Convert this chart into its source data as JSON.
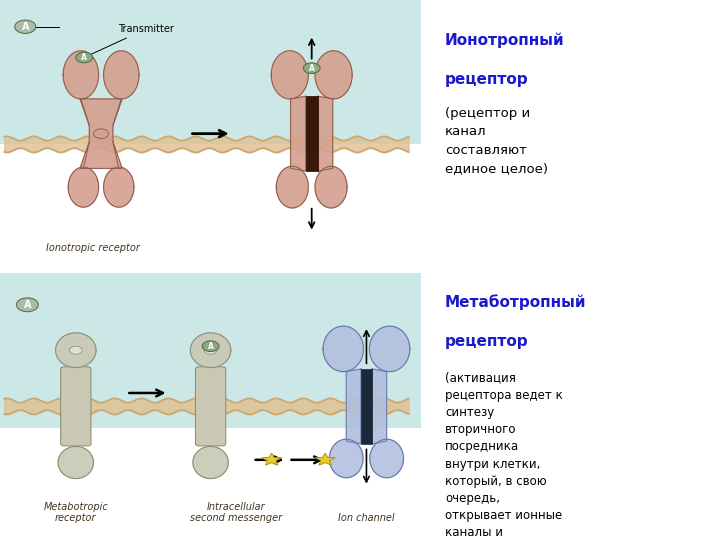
{
  "bg_color": "#ffffff",
  "panel_top_bg_upper": "#cce8e6",
  "panel_top_bg_lower": "#f0ead8",
  "title1_color": "#1a1acc",
  "title2_color": "#1a1acc",
  "body_color": "#000000",
  "title1": "Ионотропный\nрецептор",
  "body1": "(рецептор и\nканал\nсоставляют\nединое целое)",
  "title2": "Метаботропный\nрецептор",
  "body2": "(активация\nрецептора ведет к\nсинтезу\nвторичного\nпосредника\nвнутри клетки,\nкоторый, в свою\nочередь,\nоткрывает ионные\nканалы и\nзапускает другие\nпроцессы в\nклетке)",
  "receptor_color_pink": "#d4a090",
  "receptor_color_pink_dark": "#8b5a4a",
  "receptor_color_gray": "#c8c8b4",
  "receptor_color_gray_dark": "#888870",
  "receptor_color_blue": "#b0bedd",
  "receptor_color_blue_dark": "#6678aa",
  "membrane_color": "#c8a870",
  "membrane_fill": "#dfc090",
  "star_color": "#e8cc30",
  "star_ec": "#b09010",
  "label_color": "#443322",
  "title_fontsize": 11,
  "body_fontsize": 9.5,
  "label_fontsize": 7
}
